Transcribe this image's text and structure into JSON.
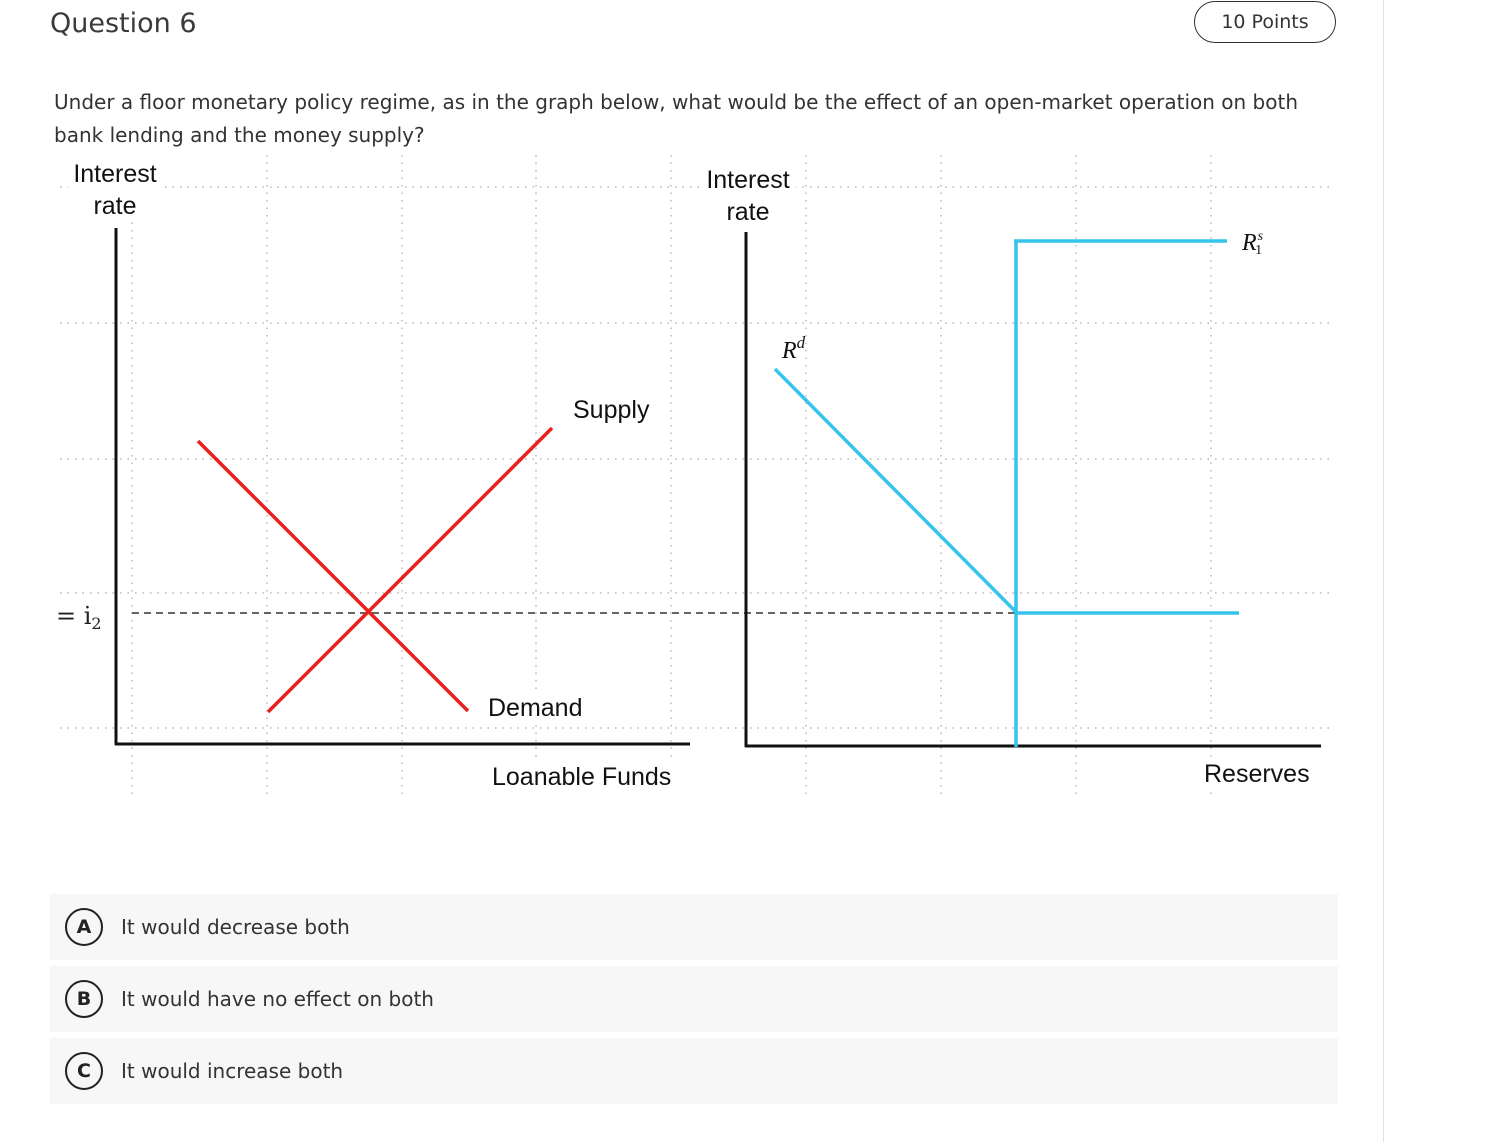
{
  "question": {
    "title": "Question 6",
    "points": "10 Points",
    "prompt": "Under a floor monetary policy regime, as in the graph below, what would be the effect of an open-market operation on both bank lending and the money supply?"
  },
  "figure": {
    "left_panel": {
      "y_label_line1": "Interest",
      "y_label_line2": "rate",
      "x_label": "Loanable Funds",
      "rate_marker": "= i",
      "rate_marker_sub": "2",
      "supply_label": "Supply",
      "demand_label": "Demand"
    },
    "right_panel": {
      "y_label_line1": "Interest",
      "y_label_line2": "rate",
      "x_label": "Reserves",
      "demand_curve_label": "R",
      "demand_curve_sup": "d",
      "supply_curve_label": "R",
      "supply_curve_sup": "s",
      "supply_curve_sub": "1"
    },
    "colors": {
      "loanable_funds_curves": "#e8201e",
      "reserves_curves": "#35c4ec",
      "dashed_line": "#333333",
      "grid_dots": "#b8b8b8"
    }
  },
  "options": [
    {
      "letter": "A",
      "text": "It would decrease both"
    },
    {
      "letter": "B",
      "text": "It would have no effect on both"
    },
    {
      "letter": "C",
      "text": "It would increase both"
    }
  ]
}
